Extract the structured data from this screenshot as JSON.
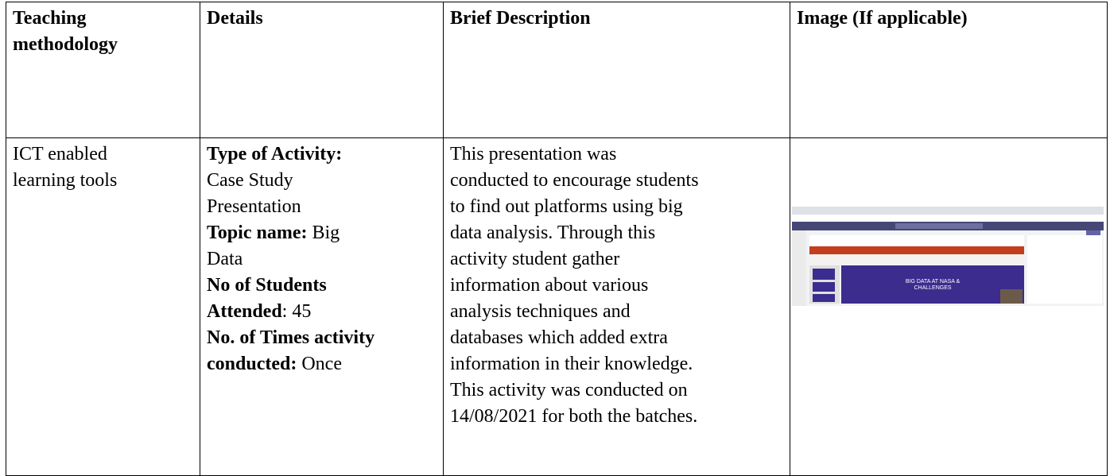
{
  "table": {
    "header": [
      "Teaching methodology",
      "Details",
      "Brief Description",
      "Image (If applicable)"
    ],
    "row": {
      "methodology": [
        "ICT enabled",
        "learning tools"
      ],
      "details": [
        {
          "label": "Type of Activity:",
          "value": [
            "Case Study",
            "Presentation"
          ]
        },
        {
          "label": "Topic name:",
          "value": [
            "Big",
            "Data"
          ]
        },
        {
          "label": [
            "No of Students",
            "Attended"
          ],
          "value": ": 45"
        },
        {
          "label": [
            "No. of Times activity",
            "conducted:"
          ],
          "value": "Once"
        }
      ],
      "description": [
        "This presentation  was",
        "conducted to encourage students",
        "to find out platforms using big",
        "data analysis. Through this",
        "activity student gather",
        "information about various",
        "analysis techniques and",
        "databases which added extra",
        "information in their knowledge.",
        "This activity was conducted on",
        "14/08/2021 for both the batches."
      ],
      "image": {
        "slide_title": [
          "BIG DATA AT NASA &",
          "CHALLENGES"
        ]
      }
    }
  }
}
